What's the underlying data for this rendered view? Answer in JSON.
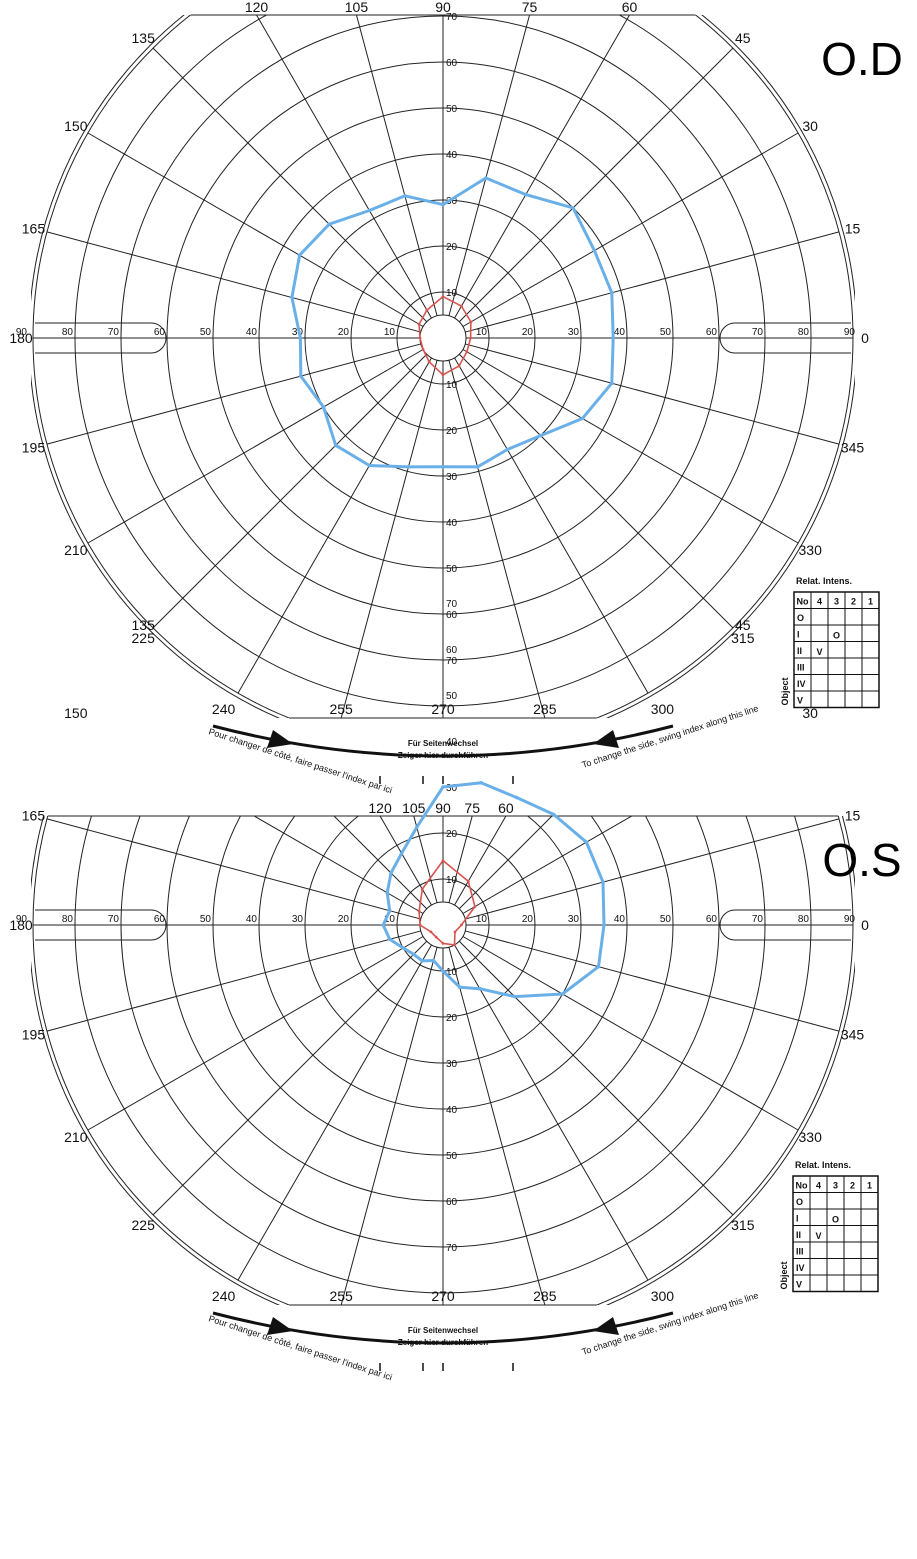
{
  "chart_data": [
    {
      "type": "polar",
      "title": "O.D",
      "angle_labels": [
        "0",
        "15",
        "30",
        "45",
        "60",
        "75",
        "90",
        "105",
        "120",
        "135",
        "150",
        "165",
        "180",
        "195",
        "210",
        "225",
        "240",
        "255",
        "270",
        "285",
        "300",
        "315",
        "330",
        "345"
      ],
      "radius_labels": [
        "10",
        "20",
        "30",
        "40",
        "50",
        "60",
        "70",
        "80",
        "90"
      ],
      "rlim": [
        0,
        90
      ],
      "series": [
        {
          "name": "II/4",
          "color": "#6ab0e8",
          "angles": [
            0,
            15,
            30,
            45,
            60,
            75,
            90,
            105,
            120,
            135,
            150,
            165,
            180,
            195,
            210,
            225,
            240,
            255,
            270,
            285,
            300,
            315,
            330,
            345
          ],
          "radii": [
            37,
            38,
            38,
            40,
            36,
            36,
            29,
            32,
            32,
            35,
            36,
            34,
            31,
            32,
            30,
            33,
            32,
            29,
            28,
            29,
            28,
            30,
            35,
            38
          ]
        },
        {
          "name": "I/3",
          "color": "#d9534f",
          "angles": [
            0,
            30,
            60,
            90,
            120,
            150,
            180,
            210,
            240,
            270,
            300,
            330
          ],
          "radii": [
            6,
            7,
            8,
            9,
            7,
            6,
            5,
            5,
            6,
            8,
            7,
            6
          ]
        }
      ],
      "legend_table": {
        "title": "Relat. Intens.",
        "col_headers": [
          "No",
          "4",
          "3",
          "2",
          "1"
        ],
        "row_headers": [
          "O",
          "I",
          "II",
          "III",
          "IV",
          "V"
        ],
        "row_axis_label": "Object",
        "marks": [
          {
            "row": "I",
            "col": "3",
            "symbol": "O",
            "color": "#d9534f"
          },
          {
            "row": "II",
            "col": "4",
            "symbol": "V",
            "color": "#2b8fe0"
          }
        ]
      },
      "notes": {
        "left": "Pour changer de côté, faire passer l'index par ici",
        "center_1": "Für Seitenwechsel",
        "center_2": "Zeiger hier durchführen",
        "right": "To change the side, swing index along this line"
      }
    },
    {
      "type": "polar",
      "title": "O.S",
      "angle_labels": [
        "0",
        "15",
        "30",
        "45",
        "60",
        "75",
        "90",
        "105",
        "120",
        "135",
        "150",
        "165",
        "180",
        "195",
        "210",
        "225",
        "240",
        "255",
        "270",
        "285",
        "300",
        "315",
        "330",
        "345"
      ],
      "radius_labels": [
        "10",
        "20",
        "30",
        "40",
        "50",
        "60",
        "70",
        "80",
        "90"
      ],
      "rlim": [
        0,
        90
      ],
      "series": [
        {
          "name": "II/4",
          "color": "#6ab0e8",
          "angles": [
            0,
            15,
            30,
            45,
            60,
            75,
            90,
            105,
            120,
            135,
            150,
            165,
            180,
            195,
            210,
            225,
            240,
            255,
            270,
            285,
            300,
            315,
            330,
            345
          ],
          "radii": [
            35,
            36,
            36,
            34,
            32,
            32,
            30,
            22,
            18,
            16,
            14,
            12,
            13,
            12,
            10,
            9,
            9,
            8,
            10,
            14,
            16,
            22,
            30,
            35
          ]
        },
        {
          "name": "I/3",
          "color": "#d9534f",
          "angles": [
            0,
            30,
            60,
            90,
            120,
            150,
            180,
            210,
            240,
            270,
            300,
            330
          ],
          "radii": [
            4,
            8,
            11,
            14,
            9,
            6,
            5,
            3,
            3,
            4,
            5,
            3
          ]
        }
      ],
      "legend_table": {
        "title": "Relat. Intens.",
        "col_headers": [
          "No",
          "4",
          "3",
          "2",
          "1"
        ],
        "row_headers": [
          "O",
          "I",
          "II",
          "III",
          "IV",
          "V"
        ],
        "row_axis_label": "Object",
        "marks": [
          {
            "row": "I",
            "col": "3",
            "symbol": "O",
            "color": "#d9534f"
          },
          {
            "row": "II",
            "col": "4",
            "symbol": "V",
            "color": "#2b8fe0"
          }
        ]
      },
      "notes": {
        "left": "Pour changer de côté, faire passer l'index par ici",
        "center_1": "Für Seitenwechsel",
        "center_2": "Zeiger hier durchführen",
        "right": "To change the side, swing index along this line"
      }
    }
  ]
}
